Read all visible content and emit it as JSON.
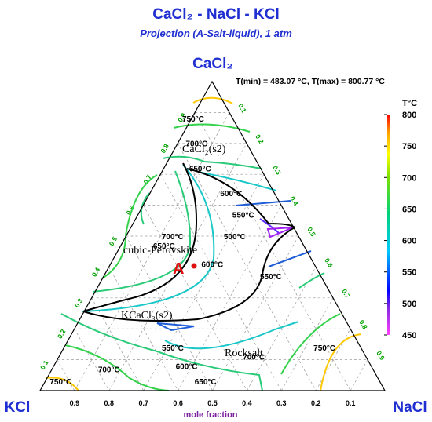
{
  "chart_data": {
    "type": "ternary",
    "title": "CaCl₂ - NaCl - KCl",
    "subtitle": "Projection (A-Salt-liquid), 1 atm",
    "vertices": {
      "top": "CaCl₂",
      "left": "KCl",
      "right": "NaCl"
    },
    "axis_label": "mole fraction",
    "range_text": "T(min) = 483.07 °C, T(max) = 800.77 °C",
    "ticks": [
      "0.1",
      "0.2",
      "0.3",
      "0.4",
      "0.5",
      "0.6",
      "0.7",
      "0.8",
      "0.9"
    ],
    "tick_color": "#00a000",
    "colorbar": {
      "title": "T°C",
      "ticks": [
        450,
        500,
        550,
        600,
        650,
        700,
        750,
        800
      ],
      "range": [
        450,
        800
      ],
      "colors": [
        "#ff40ff",
        "#0000ff",
        "#00c8ff",
        "#00d200",
        "#ffff00",
        "#ffa000",
        "#ff0000"
      ]
    },
    "phase_regions": [
      "CaCl₂(s2)",
      "cubic-Perovskite",
      "KCaCl₃(s2)",
      "Rocksalt"
    ],
    "point": {
      "label": "A",
      "color": "#e01010"
    },
    "isotherm_labels": [
      {
        "text": "750°C",
        "temp": 750,
        "b": 0.01,
        "c": 0.87
      },
      {
        "text": "700°C",
        "temp": 700,
        "b": 0.06,
        "c": 0.79
      },
      {
        "text": "650°C",
        "temp": 650,
        "b": 0.11,
        "c": 0.71
      },
      {
        "text": "600°C",
        "temp": 600,
        "b": 0.24,
        "c": 0.63
      },
      {
        "text": "550°C",
        "temp": 550,
        "b": 0.31,
        "c": 0.56
      },
      {
        "text": "500°C",
        "temp": 500,
        "b": 0.32,
        "c": 0.49
      },
      {
        "text": "700°C",
        "temp": 700,
        "b": 0.14,
        "c": 0.49
      },
      {
        "text": "650°C",
        "temp": 650,
        "b": 0.13,
        "c": 0.46
      },
      {
        "text": "600°C",
        "temp": 600,
        "b": 0.3,
        "c": 0.4
      },
      {
        "text": "550°C",
        "temp": 550,
        "b": 0.49,
        "c": 0.36
      },
      {
        "text": "550°C",
        "temp": 550,
        "b": 0.32,
        "c": 0.13
      },
      {
        "text": "600°C",
        "temp": 600,
        "b": 0.39,
        "c": 0.07
      },
      {
        "text": "700°C",
        "temp": 700,
        "b": 0.57,
        "c": 0.1
      },
      {
        "text": "750°C",
        "temp": 750,
        "b": 0.76,
        "c": 0.13
      },
      {
        "text": "700°C",
        "temp": 700,
        "b": 0.17,
        "c": 0.06
      },
      {
        "text": "650°C",
        "temp": 650,
        "b": 0.47,
        "c": 0.02
      },
      {
        "text": "750°C",
        "temp": 750,
        "b": 0.05,
        "c": 0.02
      }
    ]
  }
}
